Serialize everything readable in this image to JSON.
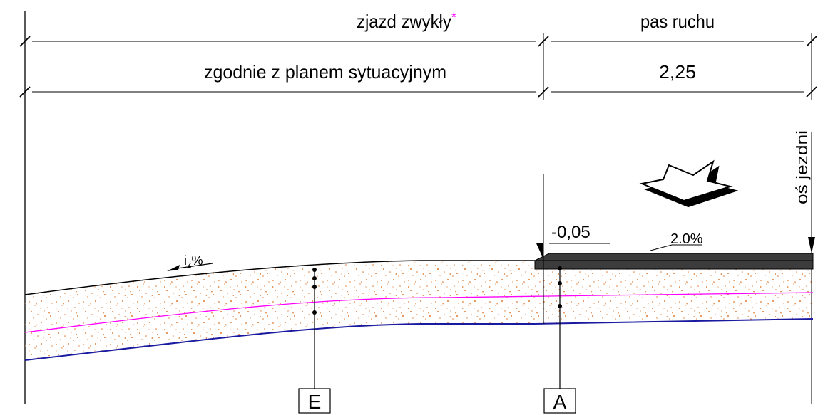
{
  "header": {
    "row1": {
      "left_label": "zjazd zwykły",
      "left_marker": "*",
      "right_label": "pas ruchu"
    },
    "row2": {
      "left_label": "zgodnie z planem sytuacyjnym",
      "right_label": "2,25"
    }
  },
  "annotations": {
    "axis_label": "oś jezdni",
    "elevation": "-0,05",
    "slope": "2.0%",
    "slope_symbol": "i",
    "slope_subscript": "z",
    "slope_unit": "%"
  },
  "markers": [
    {
      "id": "E",
      "label": "E"
    },
    {
      "id": "A",
      "label": "A"
    }
  ],
  "colors": {
    "line": "#000000",
    "fill_dots": "#e07a2e",
    "magenta_line": "#ff00ff",
    "blue_line": "#1a1aa0",
    "pavement": "#3c3c3c",
    "marker_star": "#ff00ff"
  },
  "icons": {
    "direction_arrow": "down-arrow-icon"
  }
}
